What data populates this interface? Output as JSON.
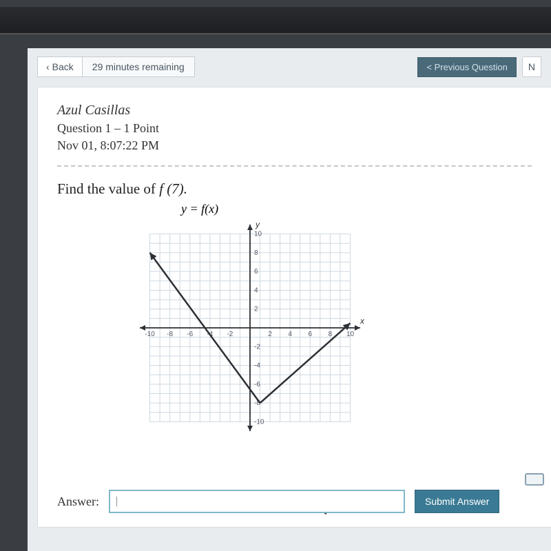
{
  "topbar": {
    "back_label": "Back",
    "time_remaining": "29 minutes remaining",
    "prev_question_label": "< Previous Question",
    "next_stub": "N"
  },
  "meta": {
    "student_name": "Azul Casillas",
    "question_line": "Question 1 – 1 Point",
    "timestamp": "Nov 01, 8:07:22 PM"
  },
  "prompt": {
    "text_prefix": "Find the value of ",
    "expr": "f (7).",
    "function_label": "y = f(x)"
  },
  "chart": {
    "type": "line",
    "xlim": [
      -11,
      11
    ],
    "ylim": [
      -11,
      11
    ],
    "tick_step": 2,
    "x_ticks": [
      -10,
      -8,
      -6,
      -4,
      -2,
      2,
      4,
      6,
      8,
      10
    ],
    "y_ticks": [
      -10,
      -8,
      -6,
      -4,
      -2,
      2,
      4,
      6,
      8,
      10
    ],
    "grid_color": "#cdd8e0",
    "axis_color": "#2c2f33",
    "line_color": "#2c2f33",
    "line_width": 2.5,
    "axis_label_x": "x",
    "axis_label_y": "y",
    "tick_fontsize": 10,
    "background_color": "#ffffff",
    "segments": [
      {
        "from": [
          -10,
          8
        ],
        "to": [
          1,
          -8
        ],
        "arrow_start": true
      },
      {
        "from": [
          1,
          -8
        ],
        "to": [
          10,
          0.5
        ],
        "arrow_end": true
      }
    ]
  },
  "answer": {
    "label": "Answer:",
    "value": "",
    "placeholder": "|",
    "submit_label": "Submit Answer"
  }
}
